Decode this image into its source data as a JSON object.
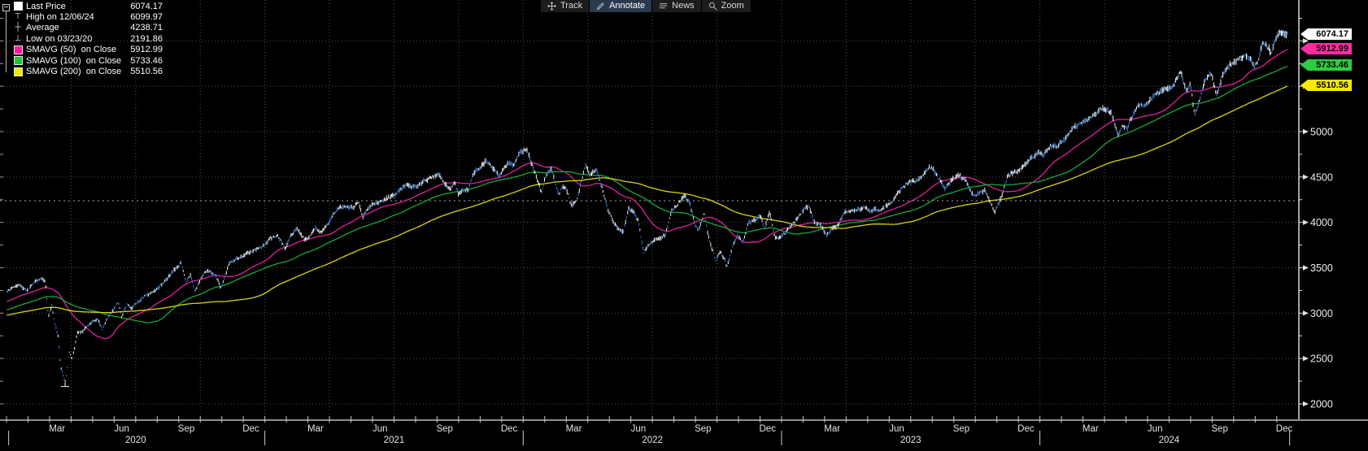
{
  "toolbar": {
    "items": [
      {
        "id": "track",
        "label": "Track",
        "icon": "move-icon",
        "active": false
      },
      {
        "id": "annotate",
        "label": "Annotate",
        "icon": "pencil-icon",
        "active": true
      },
      {
        "id": "news",
        "label": "News",
        "icon": "list-icon",
        "active": false
      },
      {
        "id": "zoom",
        "label": "Zoom",
        "icon": "magnifier-icon",
        "active": false
      }
    ]
  },
  "legend": {
    "rows": [
      {
        "icon": "swatch",
        "swatch": "#ffffff",
        "label": "Last Price",
        "value": "6074.17"
      },
      {
        "icon": "high-marker",
        "swatch": "",
        "label": "High on 12/06/24",
        "value": "6099.97"
      },
      {
        "icon": "average-marker",
        "swatch": "",
        "label": "Average",
        "value": "4238.71"
      },
      {
        "icon": "low-marker",
        "swatch": "",
        "label": "Low on 03/23/20",
        "value": "2191.86"
      },
      {
        "icon": "swatch",
        "swatch": "#ff1ba5",
        "label": "SMAVG (50)  on Close",
        "value": "5912.99"
      },
      {
        "icon": "swatch",
        "swatch": "#1fc437",
        "label": "SMAVG (100)  on Close",
        "value": "5733.46"
      },
      {
        "icon": "swatch",
        "swatch": "#f0ea00",
        "label": "SMAVG (200)  on Close",
        "value": "5510.56"
      }
    ]
  },
  "chart_data": {
    "type": "candlestick",
    "grid": true,
    "y_axis": {
      "min": 2000,
      "max": 6450,
      "tick_interval": 500,
      "minor_interval": 250,
      "tick_values": [
        5000,
        4500,
        4000,
        3500,
        3000,
        2500,
        2000
      ]
    },
    "x_axis": {
      "start": "2020-01",
      "end": "2024-12",
      "month_labels": [
        "Mar",
        "Jun",
        "Sep",
        "Dec",
        "Mar",
        "Jun",
        "Sep",
        "Dec",
        "Mar",
        "Jun",
        "Sep",
        "Dec",
        "Mar",
        "Jun",
        "Sep",
        "Dec",
        "Mar",
        "Jun",
        "Sep",
        "Dec"
      ],
      "years": [
        "2020",
        "2021",
        "2022",
        "2023",
        "2024"
      ]
    },
    "stats": {
      "last": 6074.17,
      "high_date": "12/06/24",
      "high_value": 6099.97,
      "average": 4238.71,
      "low_date": "03/23/20",
      "low_value": 2191.86
    },
    "smas": [
      {
        "period": 50,
        "label": "SMAVG (50) on Close",
        "color": "#e0219e",
        "last": 5912.99
      },
      {
        "period": 100,
        "label": "SMAVG (100) on Close",
        "color": "#17a83b",
        "last": 5733.46
      },
      {
        "period": 200,
        "label": "SMAVG (200) on Close",
        "color": "#d9d411",
        "last": 5510.56
      }
    ],
    "tags": [
      {
        "label": "6074.17",
        "value": 6074.17,
        "bg": "#ffffff"
      },
      {
        "label": "5912.99",
        "value": 5912.99,
        "bg": "#ff2da2"
      },
      {
        "label": "5733.46",
        "value": 5733.46,
        "bg": "#2ecc40"
      },
      {
        "label": "5510.56",
        "value": 5510.56,
        "bg": "#f5ea00"
      }
    ],
    "pre_keypoints": [
      [
        -12,
        2507
      ],
      [
        -10.5,
        2700
      ],
      [
        -9,
        2834
      ],
      [
        -8,
        2920
      ],
      [
        -7,
        2984
      ],
      [
        -6.5,
        2890
      ],
      [
        -6,
        2942
      ],
      [
        -5,
        2980
      ],
      [
        -4.4,
        2847
      ],
      [
        -4,
        2926
      ],
      [
        -3,
        2977
      ],
      [
        -2,
        3038
      ],
      [
        -1,
        3141
      ],
      [
        -0.3,
        3221
      ]
    ],
    "price_keypoints": [
      [
        0,
        3231
      ],
      [
        0.55,
        3317
      ],
      [
        0.95,
        3248
      ],
      [
        1.3,
        3338
      ],
      [
        1.63,
        3386
      ],
      [
        1.8,
        3338
      ],
      [
        1.95,
        2954
      ],
      [
        2.1,
        3090
      ],
      [
        2.25,
        2882
      ],
      [
        2.4,
        2741
      ],
      [
        2.52,
        2409
      ],
      [
        2.72,
        2237
      ],
      [
        2.78,
        2310
      ],
      [
        2.9,
        2585
      ],
      [
        3.05,
        2488
      ],
      [
        3.3,
        2790
      ],
      [
        3.55,
        2800
      ],
      [
        3.8,
        2868
      ],
      [
        4,
        2912
      ],
      [
        4.25,
        2930
      ],
      [
        4.45,
        2820
      ],
      [
        4.7,
        2955
      ],
      [
        5,
        3044
      ],
      [
        5.18,
        3124
      ],
      [
        5.35,
        2966
      ],
      [
        5.6,
        3098
      ],
      [
        5.8,
        3053
      ],
      [
        6,
        3100
      ],
      [
        6.4,
        3185
      ],
      [
        6.7,
        3216
      ],
      [
        7,
        3271
      ],
      [
        7.4,
        3360
      ],
      [
        7.7,
        3455
      ],
      [
        8.02,
        3527
      ],
      [
        8.1,
        3580
      ],
      [
        8.35,
        3339
      ],
      [
        8.55,
        3427
      ],
      [
        8.75,
        3237
      ],
      [
        9,
        3363
      ],
      [
        9.3,
        3477
      ],
      [
        9.55,
        3435
      ],
      [
        9.75,
        3400
      ],
      [
        9.95,
        3270
      ],
      [
        10.2,
        3443
      ],
      [
        10.35,
        3550
      ],
      [
        10.6,
        3585
      ],
      [
        10.9,
        3622
      ],
      [
        11.2,
        3662
      ],
      [
        11.5,
        3695
      ],
      [
        11.8,
        3722
      ],
      [
        12,
        3756
      ],
      [
        12.25,
        3825
      ],
      [
        12.6,
        3855
      ],
      [
        12.95,
        3714
      ],
      [
        13.15,
        3830
      ],
      [
        13.5,
        3935
      ],
      [
        13.85,
        3811
      ],
      [
        14.1,
        3842
      ],
      [
        14.35,
        3943
      ],
      [
        14.6,
        3889
      ],
      [
        14.9,
        3973
      ],
      [
        15.15,
        4080
      ],
      [
        15.5,
        4170
      ],
      [
        15.8,
        4181
      ],
      [
        16.1,
        4164
      ],
      [
        16.35,
        4233
      ],
      [
        16.55,
        4063
      ],
      [
        16.8,
        4156
      ],
      [
        17,
        4204
      ],
      [
        17.3,
        4227
      ],
      [
        17.6,
        4256
      ],
      [
        18,
        4298
      ],
      [
        18.3,
        4360
      ],
      [
        18.55,
        4412
      ],
      [
        18.8,
        4390
      ],
      [
        19,
        4395
      ],
      [
        19.3,
        4437
      ],
      [
        19.6,
        4480
      ],
      [
        19.9,
        4509
      ],
      [
        20.05,
        4537
      ],
      [
        20.3,
        4444
      ],
      [
        20.65,
        4358
      ],
      [
        20.8,
        4443
      ],
      [
        21,
        4308
      ],
      [
        21.15,
        4357
      ],
      [
        21.45,
        4363
      ],
      [
        21.7,
        4544
      ],
      [
        22,
        4605
      ],
      [
        22.3,
        4680
      ],
      [
        22.6,
        4594
      ],
      [
        22.9,
        4513
      ],
      [
        23.1,
        4591
      ],
      [
        23.35,
        4668
      ],
      [
        23.55,
        4621
      ],
      [
        23.85,
        4766
      ],
      [
        24.05,
        4794
      ],
      [
        24.15,
        4812
      ],
      [
        24.5,
        4578
      ],
      [
        24.85,
        4327
      ],
      [
        25.05,
        4516
      ],
      [
        25.3,
        4587
      ],
      [
        25.65,
        4305
      ],
      [
        25.8,
        4384
      ],
      [
        26,
        4374
      ],
      [
        26.25,
        4171
      ],
      [
        26.5,
        4262
      ],
      [
        26.9,
        4631
      ],
      [
        27.1,
        4525
      ],
      [
        27.4,
        4583
      ],
      [
        27.65,
        4393
      ],
      [
        27.95,
        4132
      ],
      [
        28.2,
        4001
      ],
      [
        28.45,
        3924
      ],
      [
        28.65,
        3900
      ],
      [
        28.9,
        4158
      ],
      [
        29.1,
        4121
      ],
      [
        29.35,
        4017
      ],
      [
        29.6,
        3667
      ],
      [
        29.8,
        3750
      ],
      [
        30,
        3785
      ],
      [
        30.3,
        3822
      ],
      [
        30.6,
        3863
      ],
      [
        30.9,
        4130
      ],
      [
        31.2,
        4210
      ],
      [
        31.5,
        4297
      ],
      [
        31.75,
        4199
      ],
      [
        32,
        3955
      ],
      [
        32.15,
        3908
      ],
      [
        32.4,
        4110
      ],
      [
        32.65,
        3790
      ],
      [
        32.95,
        3586
      ],
      [
        33.15,
        3678
      ],
      [
        33.38,
        3577
      ],
      [
        33.45,
        3492
      ],
      [
        33.7,
        3720
      ],
      [
        33.95,
        3872
      ],
      [
        34.2,
        3770
      ],
      [
        34.45,
        3992
      ],
      [
        34.75,
        4027
      ],
      [
        35,
        4080
      ],
      [
        35.2,
        3934
      ],
      [
        35.45,
        4110
      ],
      [
        35.7,
        3822
      ],
      [
        35.95,
        3840
      ],
      [
        36.2,
        3893
      ],
      [
        36.5,
        3973
      ],
      [
        36.85,
        4077
      ],
      [
        37.05,
        4151
      ],
      [
        37.25,
        4180
      ],
      [
        37.55,
        3992
      ],
      [
        37.8,
        3970
      ],
      [
        38.1,
        3856
      ],
      [
        38.3,
        3917
      ],
      [
        38.6,
        3961
      ],
      [
        38.95,
        4109
      ],
      [
        39.2,
        4125
      ],
      [
        39.5,
        4138
      ],
      [
        39.85,
        4169
      ],
      [
        40.1,
        4120
      ],
      [
        40.35,
        4148
      ],
      [
        40.55,
        4118
      ],
      [
        40.85,
        4180
      ],
      [
        41.1,
        4222
      ],
      [
        41.45,
        4339
      ],
      [
        41.75,
        4410
      ],
      [
        42,
        4450
      ],
      [
        42.3,
        4456
      ],
      [
        42.6,
        4537
      ],
      [
        42.85,
        4607
      ],
      [
        43.05,
        4589
      ],
      [
        43.3,
        4490
      ],
      [
        43.6,
        4370
      ],
      [
        43.85,
        4450
      ],
      [
        44.1,
        4508
      ],
      [
        44.3,
        4516
      ],
      [
        44.6,
        4450
      ],
      [
        44.8,
        4330
      ],
      [
        45,
        4288
      ],
      [
        45.2,
        4330
      ],
      [
        45.45,
        4358
      ],
      [
        45.7,
        4224
      ],
      [
        45.9,
        4117
      ],
      [
        46.15,
        4237
      ],
      [
        46.5,
        4508
      ],
      [
        46.75,
        4550
      ],
      [
        47,
        4568
      ],
      [
        47.3,
        4644
      ],
      [
        47.6,
        4707
      ],
      [
        47.9,
        4770
      ],
      [
        48.15,
        4743
      ],
      [
        48.5,
        4840
      ],
      [
        48.85,
        4846
      ],
      [
        49.1,
        4906
      ],
      [
        49.4,
        5001
      ],
      [
        49.7,
        5070
      ],
      [
        49.95,
        5096
      ],
      [
        50.2,
        5130
      ],
      [
        50.5,
        5175
      ],
      [
        50.8,
        5241
      ],
      [
        51,
        5254
      ],
      [
        51.3,
        5210
      ],
      [
        51.63,
        4967
      ],
      [
        51.85,
        5064
      ],
      [
        52.05,
        5036
      ],
      [
        52.3,
        5180
      ],
      [
        52.6,
        5297
      ],
      [
        52.9,
        5278
      ],
      [
        53.1,
        5346
      ],
      [
        53.5,
        5433
      ],
      [
        53.8,
        5460
      ],
      [
        54.1,
        5475
      ],
      [
        54.35,
        5572
      ],
      [
        54.55,
        5667
      ],
      [
        54.8,
        5436
      ],
      [
        55,
        5522
      ],
      [
        55.18,
        5186
      ],
      [
        55.4,
        5344
      ],
      [
        55.7,
        5591
      ],
      [
        55.95,
        5648
      ],
      [
        56.2,
        5408
      ],
      [
        56.5,
        5626
      ],
      [
        56.8,
        5738
      ],
      [
        57,
        5762
      ],
      [
        57.3,
        5815
      ],
      [
        57.58,
        5842
      ],
      [
        57.8,
        5797
      ],
      [
        57.95,
        5705
      ],
      [
        58.15,
        5783
      ],
      [
        58.35,
        5995
      ],
      [
        58.55,
        5949
      ],
      [
        58.75,
        5870
      ],
      [
        58.95,
        6032
      ],
      [
        59.15,
        6090
      ],
      [
        59.25,
        6084
      ],
      [
        59.4,
        6052
      ],
      [
        59.5,
        6074
      ]
    ]
  }
}
